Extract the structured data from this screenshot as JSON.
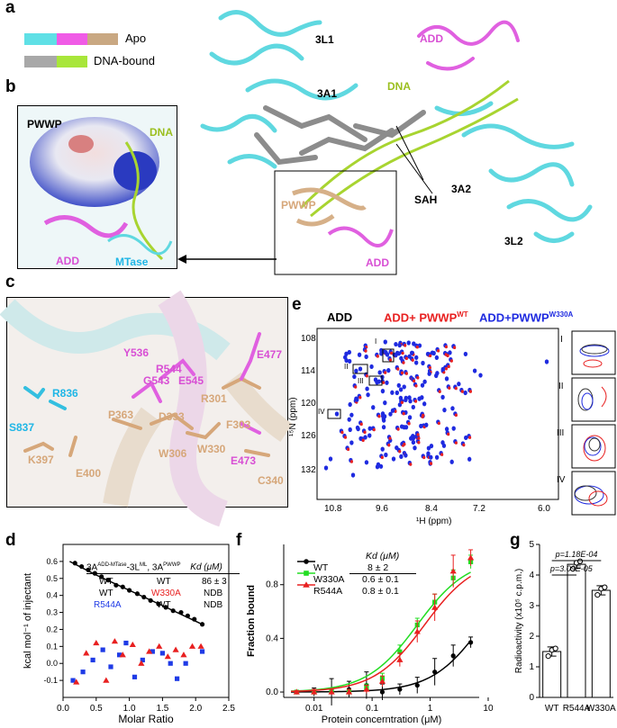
{
  "panels": {
    "a": "a",
    "b": "b",
    "c": "c",
    "d": "d",
    "e": "e",
    "f": "f",
    "g": "g"
  },
  "legend": {
    "apo": "Apo",
    "dna_bound": "DNA-bound",
    "colors": {
      "cyan": "#5fe0e6",
      "magenta": "#f05be6",
      "tan": "#c9a882",
      "gray": "#a8a8a8",
      "green": "#a8e63a"
    }
  },
  "panel_a": {
    "labels": [
      "3L1",
      "3A1",
      "ADD",
      "DNA",
      "3A2",
      "SAH",
      "3L2",
      "PWWP",
      "ADD"
    ]
  },
  "panel_b": {
    "labels": [
      "PWWP",
      "DNA",
      "ADD",
      "MTase"
    ]
  },
  "panel_c": {
    "residues": [
      "Y536",
      "R544",
      "G543",
      "E545",
      "E477",
      "R301",
      "R836",
      "P363",
      "D333",
      "F303",
      "S837",
      "W306",
      "W330",
      "E473",
      "K397",
      "E400",
      "C340"
    ]
  },
  "panel_d": {
    "table_header": [
      "3A",
      "ADD-MTase",
      "-3L",
      "ML",
      ", 3A",
      "PWWP",
      "Kd (μM)"
    ],
    "table_rows": [
      [
        "WT",
        "WT",
        "86 ± 3"
      ],
      [
        "WT",
        "W330A",
        "NDB"
      ],
      [
        "R544A",
        "WT",
        "NDB"
      ]
    ]
  },
  "panel_e": {
    "title_items": [
      "ADD",
      "ADD+ PWWP",
      "WT",
      "ADD+PWWP",
      "W330A"
    ],
    "roman": [
      "I",
      "II",
      "III",
      "IV"
    ]
  },
  "panel_f": {
    "kd_header": "Kd (μM)",
    "legend": [
      {
        "name": "WT",
        "kd": "8 ± 2"
      },
      {
        "name": "W330A",
        "kd": "0.6 ± 0.1"
      },
      {
        "name": "R544A",
        "kd": "0.8 ± 0.1"
      }
    ]
  },
  "panel_g": {
    "p_values": [
      "p=1.18E-04",
      "p=3.09E-05"
    ]
  },
  "chart_data": [
    {
      "type": "scatter",
      "panel": "d",
      "xlabel": "Molar Ratio",
      "ylabel": "kcal mol⁻¹ of injectant",
      "xlim": [
        0,
        2.5
      ],
      "ylim": [
        -0.2,
        0.7
      ],
      "xticks": [
        "0.0",
        "0.5",
        "1.0",
        "1.5",
        "2.0",
        "2.5"
      ],
      "yticks": [
        "-0.1",
        "0.0",
        "0.1",
        "0.2",
        "0.3",
        "0.4",
        "0.5",
        "0.6"
      ],
      "series": [
        {
          "color": "#000000",
          "marker": "circle",
          "x": [
            0.18,
            0.28,
            0.38,
            0.48,
            0.58,
            0.68,
            0.8,
            0.9,
            1.0,
            1.12,
            1.22,
            1.32,
            1.44,
            1.55,
            1.66,
            1.78,
            1.88,
            1.98,
            2.1
          ],
          "y": [
            0.59,
            0.57,
            0.55,
            0.53,
            0.51,
            0.49,
            0.46,
            0.45,
            0.43,
            0.41,
            0.39,
            0.37,
            0.35,
            0.33,
            0.31,
            0.3,
            0.28,
            0.26,
            0.23
          ]
        },
        {
          "color": "#1f3be6",
          "marker": "square",
          "x": [
            0.15,
            0.3,
            0.45,
            0.6,
            0.72,
            0.85,
            0.95,
            1.08,
            1.2,
            1.35,
            1.5,
            1.62,
            1.72,
            1.85,
            2.1
          ],
          "y": [
            -0.1,
            -0.05,
            0.02,
            0.08,
            -0.02,
            0.05,
            0.12,
            -0.08,
            0.02,
            0.07,
            0.06,
            0.0,
            -0.09,
            0.0,
            0.07
          ]
        },
        {
          "color": "#e82020",
          "marker": "triangle",
          "x": [
            0.2,
            0.35,
            0.5,
            0.65,
            0.78,
            0.9,
            1.05,
            1.18,
            1.3,
            1.45,
            1.58,
            1.7,
            1.82,
            1.95,
            2.08
          ],
          "y": [
            -0.11,
            0.06,
            0.12,
            -0.1,
            0.13,
            0.05,
            0.11,
            0.0,
            0.07,
            0.1,
            0.04,
            0.08,
            0.05,
            0.1,
            0.1
          ]
        }
      ],
      "fit": {
        "x": [
          0.1,
          0.5,
          1.0,
          1.5,
          2.1
        ],
        "y": [
          0.6,
          0.52,
          0.43,
          0.34,
          0.23
        ]
      }
    },
    {
      "type": "line",
      "panel": "f",
      "xlabel": "Protein concerntration (μM)",
      "ylabel": "Fraction bound",
      "xscale": "log",
      "xlim": [
        0.003,
        7
      ],
      "ylim": [
        -0.04,
        1.1
      ],
      "xticks": [
        "0.01",
        "0.1",
        "1",
        "10"
      ],
      "yticks": [
        "0.0",
        "0.4",
        "0.8"
      ],
      "series": [
        {
          "name": "WT",
          "color": "#000000",
          "marker": "circle",
          "x": [
            0.005,
            0.01,
            0.02,
            0.04,
            0.08,
            0.15,
            0.3,
            0.6,
            1.2,
            2.5,
            5
          ],
          "y": [
            0.0,
            0.0,
            0.0,
            0.02,
            0.05,
            0.0,
            0.02,
            0.05,
            0.15,
            0.27,
            0.37
          ],
          "err": [
            0.01,
            0.03,
            0.1,
            0.06,
            0.1,
            0.06,
            0.04,
            0.06,
            0.1,
            0.08,
            0.04
          ],
          "kd": 8
        },
        {
          "name": "W330A",
          "color": "#22dd22",
          "marker": "square",
          "x": [
            0.005,
            0.01,
            0.02,
            0.04,
            0.08,
            0.15,
            0.3,
            0.6,
            1.2,
            2.5,
            5
          ],
          "y": [
            0.0,
            0.0,
            0.01,
            0.0,
            0.03,
            0.1,
            0.3,
            0.5,
            0.67,
            0.85,
            0.97
          ],
          "err": [
            0.01,
            0.02,
            0.02,
            0.02,
            0.03,
            0.04,
            0.05,
            0.05,
            0.06,
            0.06,
            0.05
          ],
          "kd": 0.6
        },
        {
          "name": "R544A",
          "color": "#e82020",
          "marker": "triangle",
          "x": [
            0.005,
            0.01,
            0.02,
            0.04,
            0.08,
            0.15,
            0.3,
            0.6,
            1.2,
            2.5,
            5
          ],
          "y": [
            0.0,
            0.0,
            0.0,
            0.0,
            0.02,
            0.08,
            0.24,
            0.45,
            0.63,
            0.9,
            1.0
          ],
          "err": [
            0.01,
            0.02,
            0.02,
            0.02,
            0.03,
            0.04,
            0.05,
            0.08,
            0.1,
            0.12,
            0.06
          ],
          "kd": 0.8
        }
      ]
    },
    {
      "type": "bar",
      "panel": "g",
      "categories": [
        "WT",
        "R544A",
        "W330A"
      ],
      "values": [
        1.5,
        4.35,
        3.5
      ],
      "errors": [
        0.15,
        0.12,
        0.15
      ],
      "points": [
        [
          1.35,
          1.55,
          1.6
        ],
        [
          4.2,
          4.4,
          4.45
        ],
        [
          3.35,
          3.55,
          3.6
        ]
      ],
      "ylabel": "Radioactivity (x10⁵ c.p.m.)",
      "ylim": [
        0,
        5
      ],
      "yticks": [
        "0",
        "1",
        "2",
        "3",
        "4",
        "5"
      ]
    }
  ]
}
